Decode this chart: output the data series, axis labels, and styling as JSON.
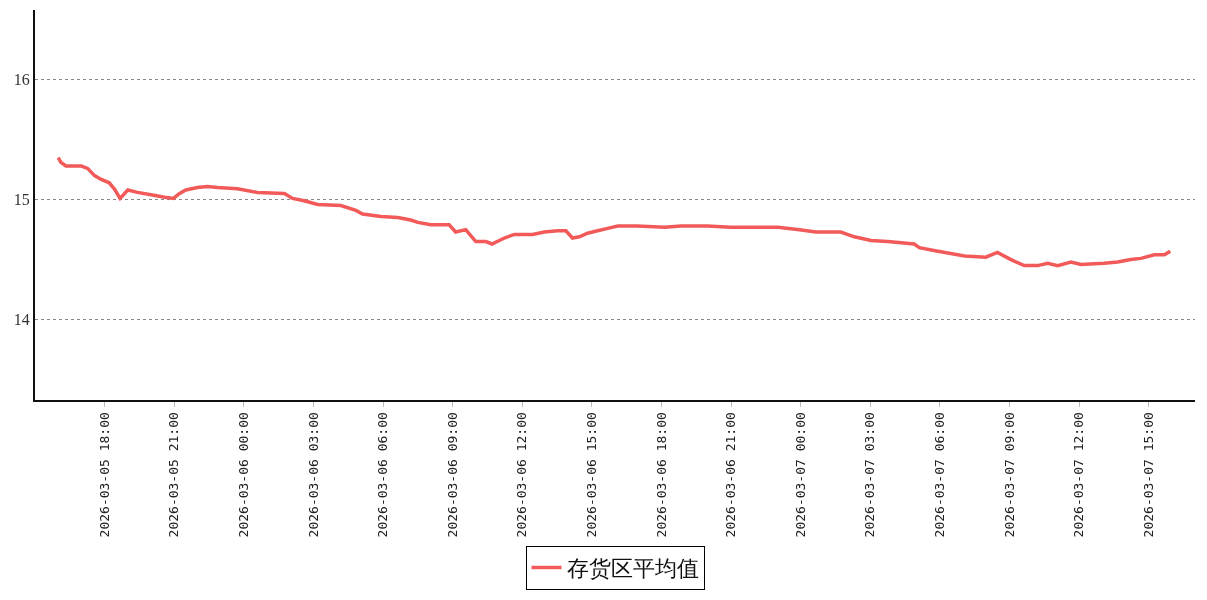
{
  "chart_data": {
    "type": "line",
    "x": [
      "2026-03-05T16:00",
      "2026-03-05T16:07",
      "2026-03-05T16:20",
      "2026-03-05T17:00",
      "2026-03-05T17:16",
      "2026-03-05T17:34",
      "2026-03-05T17:50",
      "2026-03-05T18:12",
      "2026-03-05T18:25",
      "2026-03-05T18:40",
      "2026-03-05T19:00",
      "2026-03-05T19:25",
      "2026-03-05T20:00",
      "2026-03-05T20:35",
      "2026-03-05T20:58",
      "2026-03-05T21:13",
      "2026-03-05T21:30",
      "2026-03-05T22:00",
      "2026-03-05T22:26",
      "2026-03-05T22:52",
      "2026-03-05T23:44",
      "2026-03-06T00:35",
      "2026-03-06T01:45",
      "2026-03-06T02:06",
      "2026-03-06T02:36",
      "2026-03-06T03:11",
      "2026-03-06T04:11",
      "2026-03-06T04:50",
      "2026-03-06T05:07",
      "2026-03-06T05:55",
      "2026-03-06T06:38",
      "2026-03-06T07:12",
      "2026-03-06T07:30",
      "2026-03-06T08:04",
      "2026-03-06T08:51",
      "2026-03-06T09:08",
      "2026-03-06T09:34",
      "2026-03-06T10:00",
      "2026-03-06T10:26",
      "2026-03-06T10:42",
      "2026-03-06T11:14",
      "2026-03-06T11:40",
      "2026-03-06T12:27",
      "2026-03-06T12:57",
      "2026-03-06T13:32",
      "2026-03-06T13:53",
      "2026-03-06T14:10",
      "2026-03-06T14:28",
      "2026-03-06T14:49",
      "2026-03-06T15:15",
      "2026-03-06T15:41",
      "2026-03-06T16:07",
      "2026-03-06T16:58",
      "2026-03-06T18:08",
      "2026-03-06T18:50",
      "2026-03-06T19:59",
      "2026-03-06T20:59",
      "2026-03-06T23:01",
      "2026-03-06T23:52",
      "2026-03-07T00:40",
      "2026-03-07T01:44",
      "2026-03-07T02:19",
      "2026-03-07T03:02",
      "2026-03-07T03:45",
      "2026-03-07T04:54",
      "2026-03-07T05:07",
      "2026-03-07T05:55",
      "2026-03-07T07:04",
      "2026-03-07T07:59",
      "2026-03-07T08:29",
      "2026-03-07T09:04",
      "2026-03-07T09:38",
      "2026-03-07T10:13",
      "2026-03-07T10:39",
      "2026-03-07T11:05",
      "2026-03-07T11:39",
      "2026-03-07T12:05",
      "2026-03-07T13:05",
      "2026-03-07T13:40",
      "2026-03-07T14:14",
      "2026-03-07T14:40",
      "2026-03-07T15:15",
      "2026-03-07T15:41",
      "2026-03-07T15:56"
    ],
    "series": [
      {
        "name": "存货区平均值",
        "color": "#f25a5a",
        "values": [
          15.35,
          15.31,
          15.28,
          15.28,
          15.26,
          15.2,
          15.17,
          15.14,
          15.09,
          15.01,
          15.08,
          15.06,
          15.04,
          15.02,
          15.01,
          15.05,
          15.08,
          15.1,
          15.11,
          15.1,
          15.09,
          15.06,
          15.05,
          15.01,
          14.99,
          14.96,
          14.95,
          14.91,
          14.88,
          14.86,
          14.85,
          14.83,
          14.81,
          14.79,
          14.79,
          14.73,
          14.75,
          14.65,
          14.65,
          14.63,
          14.68,
          14.71,
          14.71,
          14.73,
          14.74,
          14.74,
          14.68,
          14.69,
          14.72,
          14.74,
          14.76,
          14.78,
          14.78,
          14.77,
          14.78,
          14.78,
          14.77,
          14.77,
          14.75,
          14.73,
          14.73,
          14.69,
          14.66,
          14.65,
          14.63,
          14.6,
          14.57,
          14.53,
          14.52,
          14.56,
          14.5,
          14.45,
          14.45,
          14.47,
          14.45,
          14.48,
          14.46,
          14.47,
          14.48,
          14.5,
          14.51,
          14.54,
          14.54,
          14.57
        ]
      }
    ],
    "xlim": [
      "2026-03-05T15:00",
      "2026-03-07T17:00"
    ],
    "xticks": [
      {
        "value": "2026-03-05T18:00",
        "label": "2026-03-05 18:00"
      },
      {
        "value": "2026-03-05T21:00",
        "label": "2026-03-05 21:00"
      },
      {
        "value": "2026-03-06T00:00",
        "label": "2026-03-06 00:00"
      },
      {
        "value": "2026-03-06T03:00",
        "label": "2026-03-06 03:00"
      },
      {
        "value": "2026-03-06T06:00",
        "label": "2026-03-06 06:00"
      },
      {
        "value": "2026-03-06T09:00",
        "label": "2026-03-06 09:00"
      },
      {
        "value": "2026-03-06T12:00",
        "label": "2026-03-06 12:00"
      },
      {
        "value": "2026-03-06T15:00",
        "label": "2026-03-06 15:00"
      },
      {
        "value": "2026-03-06T18:00",
        "label": "2026-03-06 18:00"
      },
      {
        "value": "2026-03-06T21:00",
        "label": "2026-03-06 21:00"
      },
      {
        "value": "2026-03-07T00:00",
        "label": "2026-03-07 00:00"
      },
      {
        "value": "2026-03-07T03:00",
        "label": "2026-03-07 03:00"
      },
      {
        "value": "2026-03-07T06:00",
        "label": "2026-03-07 06:00"
      },
      {
        "value": "2026-03-07T09:00",
        "label": "2026-03-07 09:00"
      },
      {
        "value": "2026-03-07T12:00",
        "label": "2026-03-07 12:00"
      },
      {
        "value": "2026-03-07T15:00",
        "label": "2026-03-07 15:00"
      }
    ],
    "ylim": [
      13.33,
      16.58
    ],
    "yticks": [
      14,
      15,
      16
    ],
    "grid": "y",
    "legend": "bottom",
    "line_style": "solid"
  }
}
